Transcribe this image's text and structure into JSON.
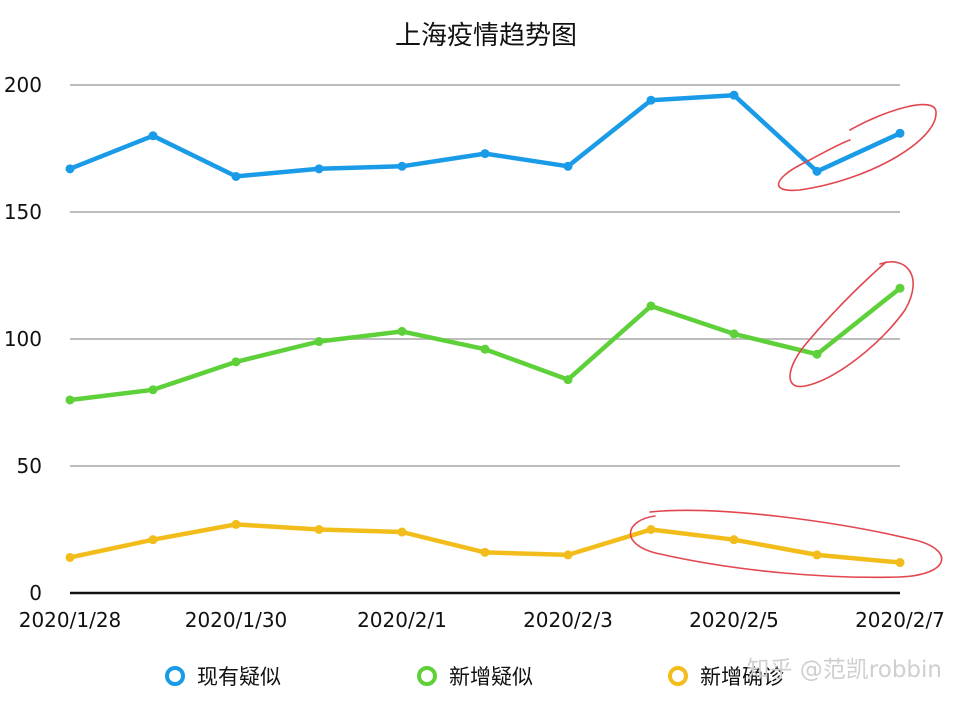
{
  "chart_data": {
    "type": "line",
    "title": "上海疫情趋势图",
    "xlabel": "",
    "ylabel": "",
    "x": [
      "2020/1/28",
      "2020/1/29",
      "2020/1/30",
      "2020/1/31",
      "2020/2/1",
      "2020/2/2",
      "2020/2/3",
      "2020/2/4",
      "2020/2/5",
      "2020/2/6",
      "2020/2/7"
    ],
    "x_tick_labels": [
      "2020/1/28",
      "2020/1/30",
      "2020/2/1",
      "2020/2/3",
      "2020/2/5",
      "2020/2/7"
    ],
    "ylim": [
      0,
      200
    ],
    "y_ticks": [
      0,
      50,
      100,
      150,
      200
    ],
    "grid": true,
    "legend_position": "bottom",
    "series": [
      {
        "name": "现有疑似",
        "color": "#1a9be8",
        "values": [
          167,
          180,
          164,
          167,
          168,
          173,
          168,
          194,
          196,
          166,
          181
        ]
      },
      {
        "name": "新增疑似",
        "color": "#5ed13a",
        "values": [
          76,
          80,
          91,
          99,
          103,
          96,
          84,
          113,
          102,
          94,
          120
        ]
      },
      {
        "name": "新增确诊",
        "color": "#f2bd1b",
        "values": [
          14,
          21,
          27,
          25,
          24,
          16,
          15,
          25,
          21,
          15,
          12
        ]
      }
    ]
  },
  "annotation_color": "#e2474f",
  "watermark": "知乎 @范凯robbin"
}
